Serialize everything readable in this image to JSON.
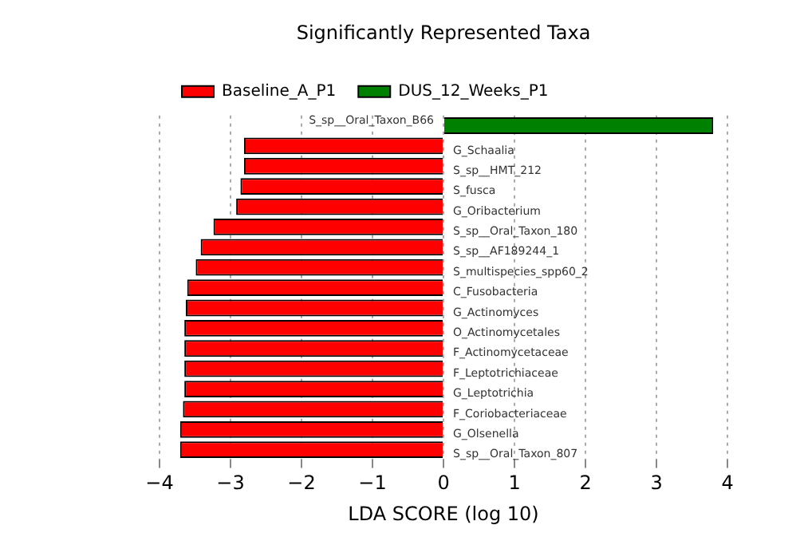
{
  "chart_data": {
    "type": "bar",
    "orientation": "horizontal",
    "title": "Significantly Represented Taxa",
    "xlabel": "LDA SCORE (log 10)",
    "categories": [
      "S_sp__Oral_Taxon_B66",
      "G_Schaalia",
      "S_sp__HMT_212",
      "S_fusca",
      "G_Oribacterium",
      "S_sp__Oral_Taxon_180",
      "S_sp__AF189244_1",
      "S_multispecies_spp60_2",
      "C_Fusobacteria",
      "G_Actinomyces",
      "O_Actinomycetales",
      "F_Actinomycetaceae",
      "F_Leptotrichiaceae",
      "G_Leptotrichia",
      "F_Coriobacteriaceae",
      "G_Olsenella",
      "S_sp__Oral_Taxon_807"
    ],
    "series": [
      {
        "name": "Baseline_A_P1",
        "color": "#ff0000",
        "values": [
          null,
          -2.81,
          -2.81,
          -2.86,
          -2.92,
          -3.24,
          -3.42,
          -3.49,
          -3.61,
          -3.63,
          -3.65,
          -3.65,
          -3.65,
          -3.65,
          -3.67,
          -3.71,
          -3.71
        ]
      },
      {
        "name": "DUS_12_Weeks_P1",
        "color": "#008000",
        "values": [
          3.8,
          null,
          null,
          null,
          null,
          null,
          null,
          null,
          null,
          null,
          null,
          null,
          null,
          null,
          null,
          null,
          null
        ]
      }
    ],
    "xlim": [
      -4,
      4
    ],
    "xticks": [
      -4,
      -3,
      -2,
      -1,
      0,
      1,
      2,
      3,
      4
    ],
    "grid": "x",
    "legend": "top left"
  }
}
